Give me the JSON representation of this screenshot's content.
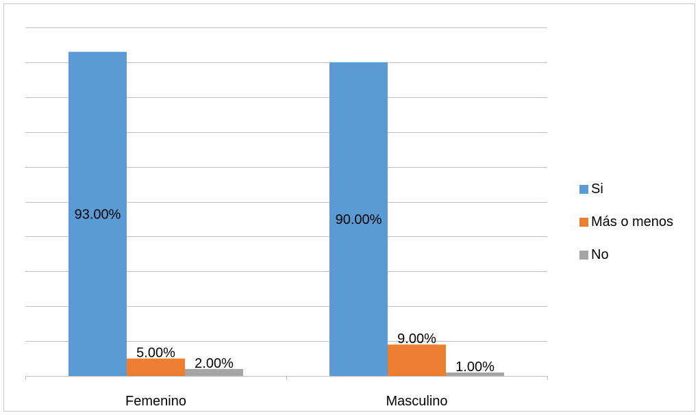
{
  "chart_data": {
    "type": "bar",
    "title": "",
    "xlabel": "",
    "ylabel": "",
    "categories": [
      "Femenino",
      "Masculino"
    ],
    "series": [
      {
        "name": "Si",
        "values": [
          93.0,
          90.0
        ],
        "labels": [
          "93.00%",
          "90.00%"
        ],
        "color": "#5b9bd5"
      },
      {
        "name": "Más o menos",
        "values": [
          5.0,
          9.0
        ],
        "labels": [
          "5.00%",
          "9.00%"
        ],
        "color": "#ed7d31"
      },
      {
        "name": "No",
        "values": [
          2.0,
          1.0
        ],
        "labels": [
          "2.00%",
          "1.00%"
        ],
        "color": "#a5a5a5"
      }
    ],
    "ylim": [
      0,
      100
    ],
    "ytick_step": 10,
    "grid": true,
    "y_tick_labels_visible": false,
    "legend_position": "right",
    "unit": "%"
  }
}
